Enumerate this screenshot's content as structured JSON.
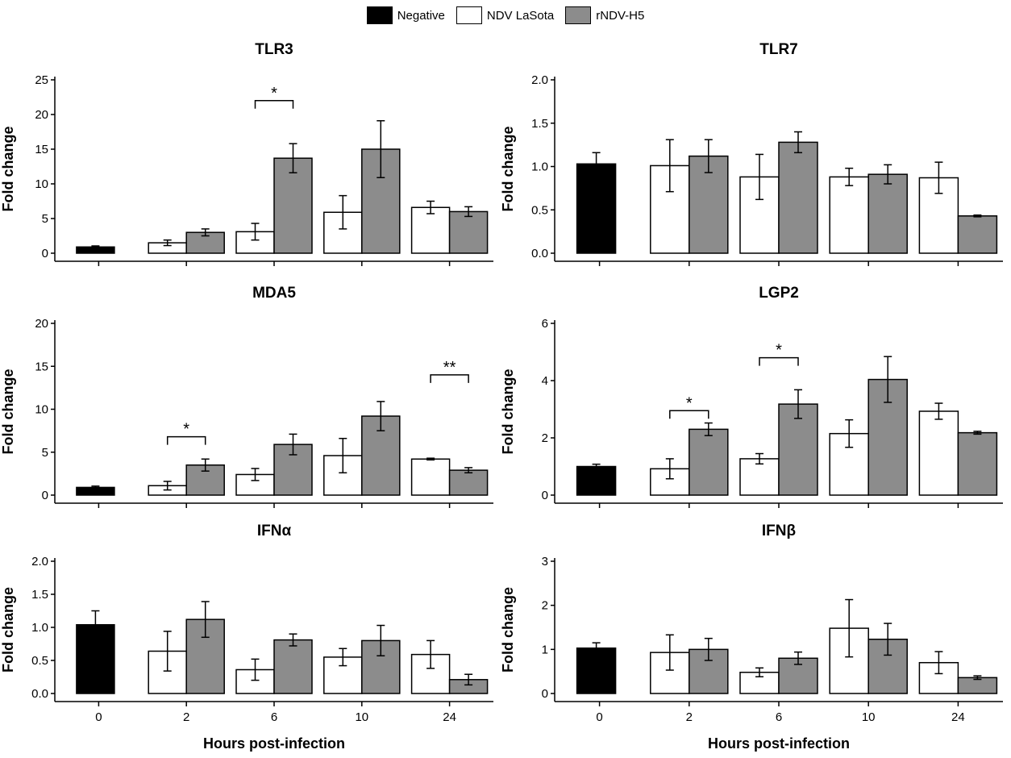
{
  "legend": [
    {
      "label": "Negative",
      "color": "#000000"
    },
    {
      "label": "NDV LaSota",
      "color": "#ffffff"
    },
    {
      "label": "rNDV-H5",
      "color": "#8c8c8c"
    }
  ],
  "x_title": "Hours post-infection",
  "chart_data": [
    {
      "type": "bar",
      "title": "TLR3",
      "ylabel": "Fold change",
      "ylim": [
        0,
        25
      ],
      "yticks": [
        0,
        5,
        10,
        15,
        20,
        25
      ],
      "categories": [
        "0",
        "2",
        "6",
        "10",
        "24"
      ],
      "negative": {
        "value": 0.9,
        "error": 0.15
      },
      "series": [
        {
          "name": "NDV LaSota",
          "values": [
            null,
            1.5,
            3.1,
            5.9,
            6.6
          ],
          "errors": [
            null,
            0.4,
            1.2,
            2.4,
            0.9
          ]
        },
        {
          "name": "rNDV-H5",
          "values": [
            null,
            3.0,
            13.7,
            15.0,
            6.0
          ],
          "errors": [
            null,
            0.5,
            2.1,
            4.1,
            0.7
          ]
        }
      ],
      "annotations": [
        {
          "category": "6",
          "text": "*",
          "level": 22
        }
      ]
    },
    {
      "type": "bar",
      "title": "TLR7",
      "ylabel": "Fold change",
      "ylim": [
        0,
        2.0
      ],
      "yticks": [
        0.0,
        0.5,
        1.0,
        1.5,
        2.0
      ],
      "categories": [
        "0",
        "2",
        "6",
        "10",
        "24"
      ],
      "negative": {
        "value": 1.03,
        "error": 0.13
      },
      "series": [
        {
          "name": "NDV LaSota",
          "values": [
            null,
            1.01,
            0.88,
            0.88,
            0.87
          ],
          "errors": [
            null,
            0.3,
            0.26,
            0.1,
            0.18
          ]
        },
        {
          "name": "rNDV-H5",
          "values": [
            null,
            1.12,
            1.28,
            0.91,
            0.43
          ],
          "errors": [
            null,
            0.19,
            0.12,
            0.11,
            0.01
          ]
        }
      ],
      "annotations": []
    },
    {
      "type": "bar",
      "title": "MDA5",
      "ylabel": "Fold change",
      "ylim": [
        0,
        20
      ],
      "yticks": [
        0,
        5,
        10,
        15,
        20
      ],
      "categories": [
        "0",
        "2",
        "6",
        "10",
        "24"
      ],
      "negative": {
        "value": 0.9,
        "error": 0.15
      },
      "series": [
        {
          "name": "NDV LaSota",
          "values": [
            null,
            1.1,
            2.4,
            4.6,
            4.2
          ],
          "errors": [
            null,
            0.5,
            0.7,
            2.0,
            0.1
          ]
        },
        {
          "name": "rNDV-H5",
          "values": [
            null,
            3.5,
            5.9,
            9.2,
            2.9
          ],
          "errors": [
            null,
            0.7,
            1.2,
            1.7,
            0.3
          ]
        }
      ],
      "annotations": [
        {
          "category": "2",
          "text": "*",
          "level": 6.8
        },
        {
          "category": "24",
          "text": "**",
          "level": 14.0
        }
      ]
    },
    {
      "type": "bar",
      "title": "LGP2",
      "ylabel": "Fold change",
      "ylim": [
        0,
        6
      ],
      "yticks": [
        0,
        2,
        4,
        6
      ],
      "categories": [
        "0",
        "2",
        "6",
        "10",
        "24"
      ],
      "negative": {
        "value": 1.0,
        "error": 0.08
      },
      "series": [
        {
          "name": "NDV LaSota",
          "values": [
            null,
            0.92,
            1.27,
            2.15,
            2.93
          ],
          "errors": [
            null,
            0.35,
            0.18,
            0.48,
            0.28
          ]
        },
        {
          "name": "rNDV-H5",
          "values": [
            null,
            2.3,
            3.18,
            4.04,
            2.18
          ],
          "errors": [
            null,
            0.22,
            0.5,
            0.8,
            0.05
          ]
        }
      ],
      "annotations": [
        {
          "category": "2",
          "text": "*",
          "level": 2.95
        },
        {
          "category": "6",
          "text": "*",
          "level": 4.8
        }
      ]
    },
    {
      "type": "bar",
      "title": "IFNα",
      "ylabel": "Fold change",
      "ylim": [
        0,
        2.0
      ],
      "yticks": [
        0.0,
        0.5,
        1.0,
        1.5,
        2.0
      ],
      "categories": [
        "0",
        "2",
        "6",
        "10",
        "24"
      ],
      "negative": {
        "value": 1.04,
        "error": 0.21
      },
      "series": [
        {
          "name": "NDV LaSota",
          "values": [
            null,
            0.64,
            0.36,
            0.55,
            0.59
          ],
          "errors": [
            null,
            0.3,
            0.16,
            0.13,
            0.21
          ]
        },
        {
          "name": "rNDV-H5",
          "values": [
            null,
            1.12,
            0.81,
            0.8,
            0.21
          ],
          "errors": [
            null,
            0.27,
            0.09,
            0.23,
            0.08
          ]
        }
      ],
      "annotations": []
    },
    {
      "type": "bar",
      "title": "IFNβ",
      "ylabel": "Fold change",
      "ylim": [
        0,
        3
      ],
      "yticks": [
        0,
        1,
        2,
        3
      ],
      "categories": [
        "0",
        "2",
        "6",
        "10",
        "24"
      ],
      "negative": {
        "value": 1.03,
        "error": 0.12
      },
      "series": [
        {
          "name": "NDV LaSota",
          "values": [
            null,
            0.93,
            0.48,
            1.48,
            0.7
          ],
          "errors": [
            null,
            0.4,
            0.1,
            0.65,
            0.25
          ]
        },
        {
          "name": "rNDV-H5",
          "values": [
            null,
            1.0,
            0.8,
            1.23,
            0.36
          ],
          "errors": [
            null,
            0.25,
            0.14,
            0.36,
            0.04
          ]
        }
      ],
      "annotations": []
    }
  ]
}
